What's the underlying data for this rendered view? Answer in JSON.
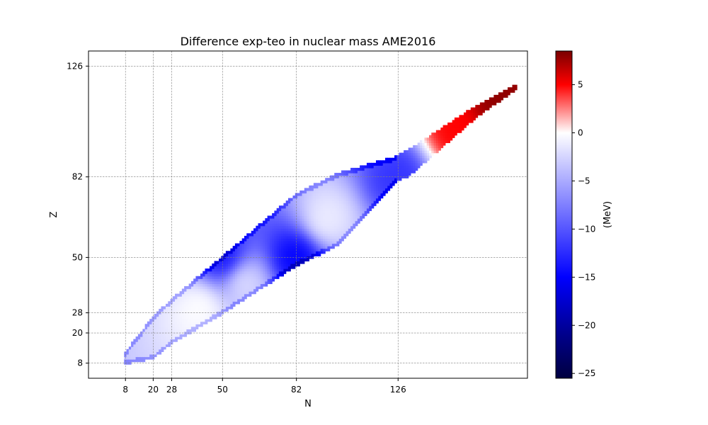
{
  "chart_data": {
    "type": "heatmap",
    "title": "Difference exp-teo in nuclear mass AME2016",
    "xlabel": "N",
    "ylabel": "Z",
    "xlim": [
      -8,
      182
    ],
    "ylim": [
      2,
      132
    ],
    "x_ticks": [
      8,
      20,
      28,
      50,
      82,
      126
    ],
    "y_ticks": [
      8,
      20,
      28,
      50,
      82,
      126
    ],
    "grid": true,
    "grid_style": "dashed",
    "colorbar": {
      "label": "(MeV)",
      "range": [
        -25.5,
        8.5
      ],
      "ticks": [
        5,
        0,
        -5,
        -10,
        -15,
        -20,
        -25
      ],
      "tick_labels": [
        "5",
        "0",
        "−5",
        "−10",
        "−15",
        "−20",
        "−25"
      ],
      "colors": {
        "min": "#000033",
        "dark_blue": "#00008b",
        "blue": "#0000ff",
        "white": "#ffffff",
        "red": "#ff0000",
        "max": "#800000"
      },
      "stops": [
        {
          "value": -25.5,
          "color": "#000040"
        },
        {
          "value": -21,
          "color": "#00008b"
        },
        {
          "value": -15,
          "color": "#0000ff"
        },
        {
          "value": 0,
          "color": "#ffffff"
        },
        {
          "value": 5,
          "color": "#ff0000"
        },
        {
          "value": 8.5,
          "color": "#7a0000"
        }
      ]
    },
    "band_Z_range_by_N": [
      {
        "N": 8,
        "z_min": 8,
        "z_max": 12
      },
      {
        "N": 20,
        "z_min": 10,
        "z_max": 26
      },
      {
        "N": 28,
        "z_min": 16,
        "z_max": 33
      },
      {
        "N": 50,
        "z_min": 28,
        "z_max": 50
      },
      {
        "N": 82,
        "z_min": 47,
        "z_max": 75
      },
      {
        "N": 100,
        "z_min": 55,
        "z_max": 83
      },
      {
        "N": 126,
        "z_min": 81,
        "z_max": 90
      },
      {
        "N": 130,
        "z_min": 82,
        "z_max": 92
      },
      {
        "N": 160,
        "z_min": 106,
        "z_max": 110
      },
      {
        "N": 177,
        "z_min": 117,
        "z_max": 118
      }
    ],
    "regions": [
      {
        "N": 126,
        "Z": 82,
        "value": -12
      },
      {
        "N": 82,
        "Z": 50,
        "value": -15
      },
      {
        "N": 50,
        "Z": 50,
        "value": -14
      },
      {
        "N": 40,
        "Z": 30,
        "value": 0
      },
      {
        "N": 60,
        "Z": 40,
        "value": -2
      },
      {
        "N": 95,
        "Z": 65,
        "value": -1
      },
      {
        "N": 150,
        "Z": 100,
        "value": 5
      },
      {
        "N": 170,
        "Z": 112,
        "value": 8
      }
    ]
  }
}
